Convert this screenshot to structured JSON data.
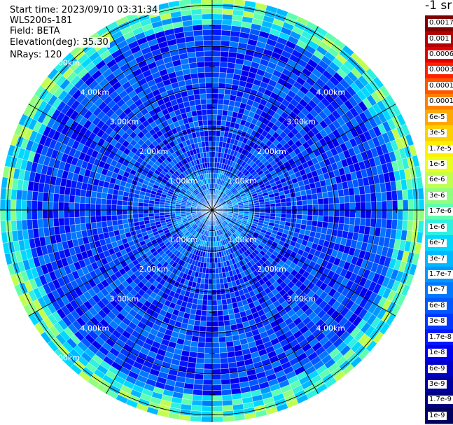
{
  "header": {
    "start_time": "Start time: 2023/09/10 03:31:34",
    "instrument": "WLS200s-181",
    "field": "Field: BETA",
    "elevation": "Elevation(deg): 35.30",
    "nrays": "NRays: 120"
  },
  "ppi": {
    "range_rings_km": [
      1,
      2,
      3,
      4,
      5
    ],
    "ring_labels": [
      "1.00km",
      "2.00km",
      "3.00km",
      "4.00km",
      "5.00km"
    ],
    "n_rays": 120
  },
  "colorbar": {
    "unit_label": "-1 sr",
    "labels": [
      "0.0017",
      "0.001",
      "0.0006",
      "0.0003",
      "0.00017",
      "0.0001",
      "6e-5",
      "3e-5",
      "1.7e-5",
      "1e-5",
      "6e-6",
      "3e-6",
      "1.7e-6",
      "1e-6",
      "6e-7",
      "3e-7",
      "1.7e-7",
      "1e-7",
      "6e-8",
      "3e-8",
      "1.7e-8",
      "1e-8",
      "6e-9",
      "3e-9",
      "1.7e-9",
      "1e-9"
    ],
    "colors": [
      "#7f0000",
      "#b30000",
      "#e00000",
      "#ff2000",
      "#ff5500",
      "#ff8000",
      "#ffa800",
      "#ffd000",
      "#fff000",
      "#e8ff20",
      "#c0ff50",
      "#90ff80",
      "#60ffb0",
      "#30f0e0",
      "#00d8ff",
      "#00b8ff",
      "#0098ff",
      "#0078ff",
      "#0058ff",
      "#0038ff",
      "#0018ff",
      "#0000ee",
      "#0000c8",
      "#0000a0",
      "#000080",
      "#000060"
    ]
  }
}
